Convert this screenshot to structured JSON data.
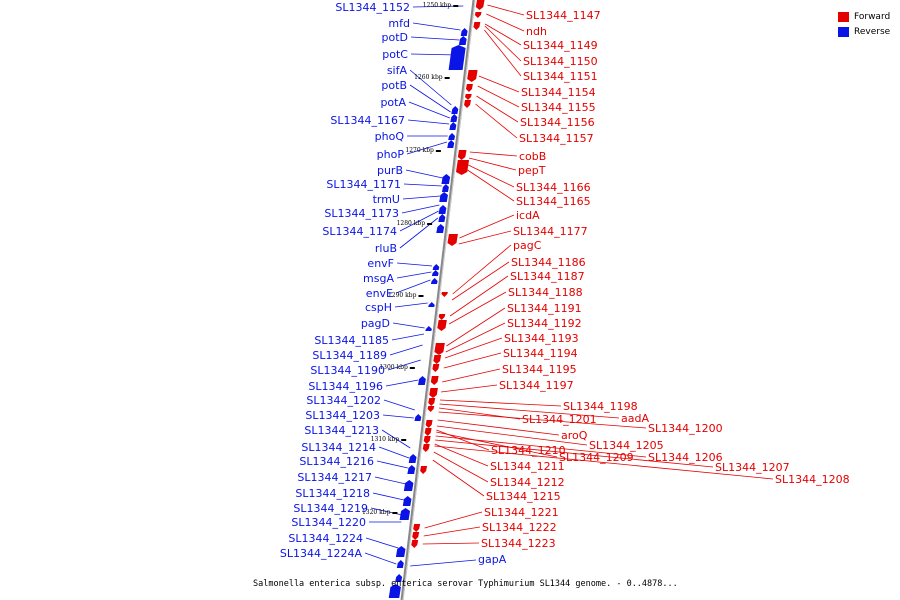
{
  "colors": {
    "forward": "#e50000",
    "reverse": "#0a14e6",
    "axis": "#888888"
  },
  "legend": [
    {
      "label": "Forward",
      "color": "#e50000"
    },
    {
      "label": "Reverse",
      "color": "#0a14e6"
    }
  ],
  "caption": "Salmonella enterica subsp. enterica serovar Typhimurium SL1344 genome. - 0..4878...",
  "scale_ticks": [
    "1250 kbp",
    "1260 kbp",
    "1270 kbp",
    "1280 kbp",
    "1290 kbp",
    "1300 kbp",
    "1310 kbp",
    "1320 kbp"
  ],
  "reverse_genes": [
    "SL1344_1152",
    "mfd",
    "potD",
    "potC",
    "sifA",
    "potB",
    "potA",
    "SL1344_1167",
    "phoQ",
    "phoP",
    "purB",
    "SL1344_1171",
    "trmU",
    "SL1344_1173",
    "SL1344_1174",
    "rluB",
    "envF",
    "msgA",
    "envE",
    "cspH",
    "pagD",
    "SL1344_1185",
    "SL1344_1189",
    "SL1344_1190",
    "SL1344_1196",
    "SL1344_1202",
    "SL1344_1203",
    "SL1344_1213",
    "SL1344_1214",
    "SL1344_1216",
    "SL1344_1217",
    "SL1344_1218",
    "SL1344_1219",
    "SL1344_1220",
    "SL1344_1224",
    "SL1344_1224A"
  ],
  "forward_genes": [
    "SL1344_1147",
    "ndh",
    "SL1344_1149",
    "SL1344_1150",
    "SL1344_1151",
    "SL1344_1154",
    "SL1344_1155",
    "SL1344_1156",
    "SL1344_1157",
    "cobB",
    "pepT",
    "SL1344_1166",
    "SL1344_1165",
    "icdA",
    "SL1344_1177",
    "pagC",
    "SL1344_1186",
    "SL1344_1187",
    "SL1344_1188",
    "SL1344_1191",
    "SL1344_1192",
    "SL1344_1193",
    "SL1344_1194",
    "SL1344_1195",
    "SL1344_1197",
    "SL1344_1198",
    "aadA",
    "SL1344_1201",
    "SL1344_1200",
    "aroQ",
    "SL1344_1205",
    "SL1344_1210",
    "SL1344_1209",
    "SL1344_1206",
    "SL1344_1207",
    "SL1344_1211",
    "SL1344_1208",
    "SL1344_1212",
    "SL1344_1215",
    "SL1344_1221",
    "SL1344_1222",
    "SL1344_1223"
  ],
  "extra_reverse_genes": [
    "gapA"
  ]
}
